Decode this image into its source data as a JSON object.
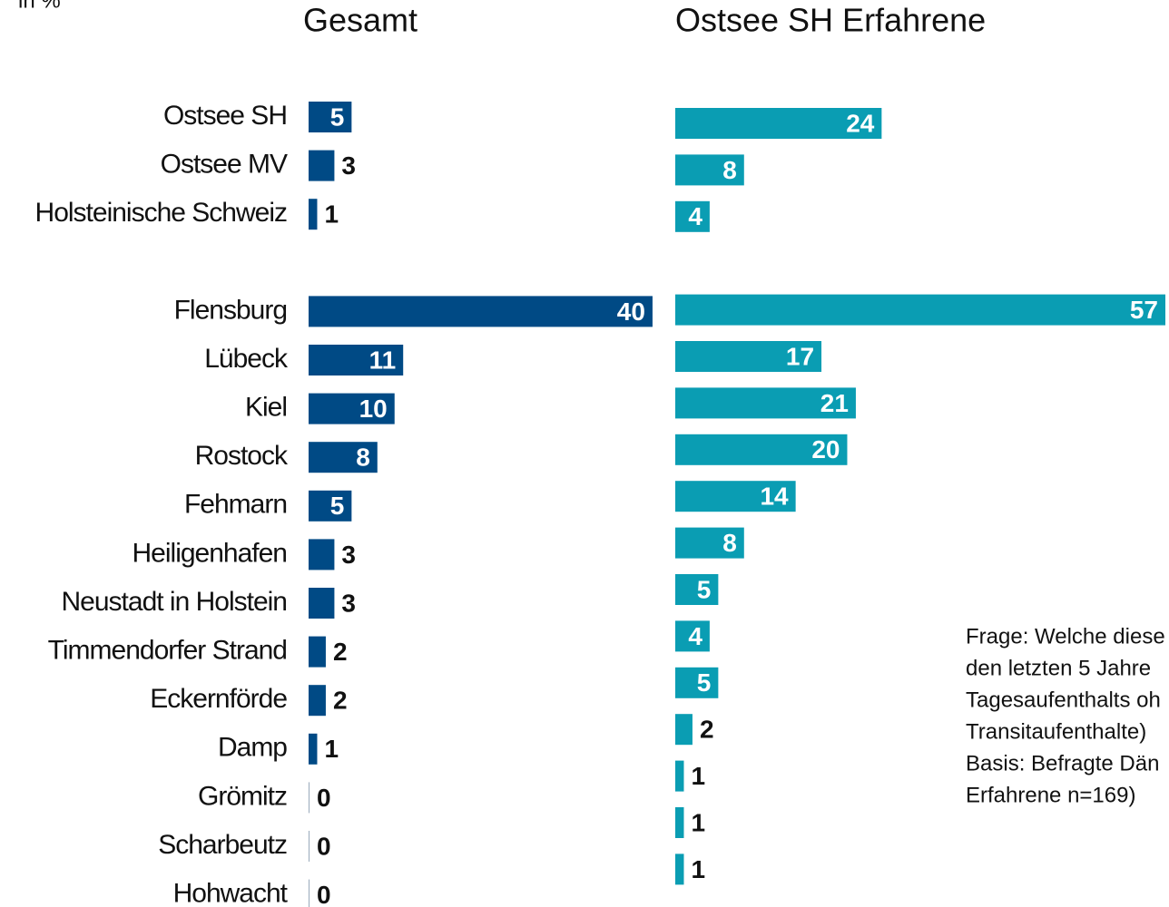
{
  "chart_data": {
    "type": "bar",
    "orientation": "horizontal",
    "unit_label": "in %",
    "categories": [
      "Ostsee SH",
      "Ostsee MV",
      "Holsteinische Schweiz",
      null,
      "Flensburg",
      "Lübeck",
      "Kiel",
      "Rostock",
      "Fehmarn",
      "Heiligenhafen",
      "Neustadt in Holstein",
      "Timmendorfer Strand",
      "Eckernförde",
      "Damp",
      "Grömitz",
      "Scharbeutz",
      "Hohwacht"
    ],
    "series": [
      {
        "name": "Gesamt",
        "color": "#004a85",
        "values": [
          5,
          3,
          1,
          null,
          40,
          11,
          10,
          8,
          5,
          3,
          3,
          2,
          2,
          1,
          0,
          0,
          0
        ]
      },
      {
        "name": "Ostsee SH Erfahrene",
        "color": "#0a9db3",
        "values": [
          24,
          8,
          4,
          null,
          57,
          17,
          21,
          20,
          14,
          8,
          5,
          4,
          5,
          2,
          1,
          1,
          1
        ]
      }
    ],
    "xlim": [
      0,
      57
    ],
    "note": [
      "Frage: Welche diese",
      "den letzten 5 Jahre",
      "Tagesaufenthalts oh",
      "Transitaufenthalte)",
      "Basis: Befragte Dän",
      "Erfahrene n=169)"
    ]
  }
}
